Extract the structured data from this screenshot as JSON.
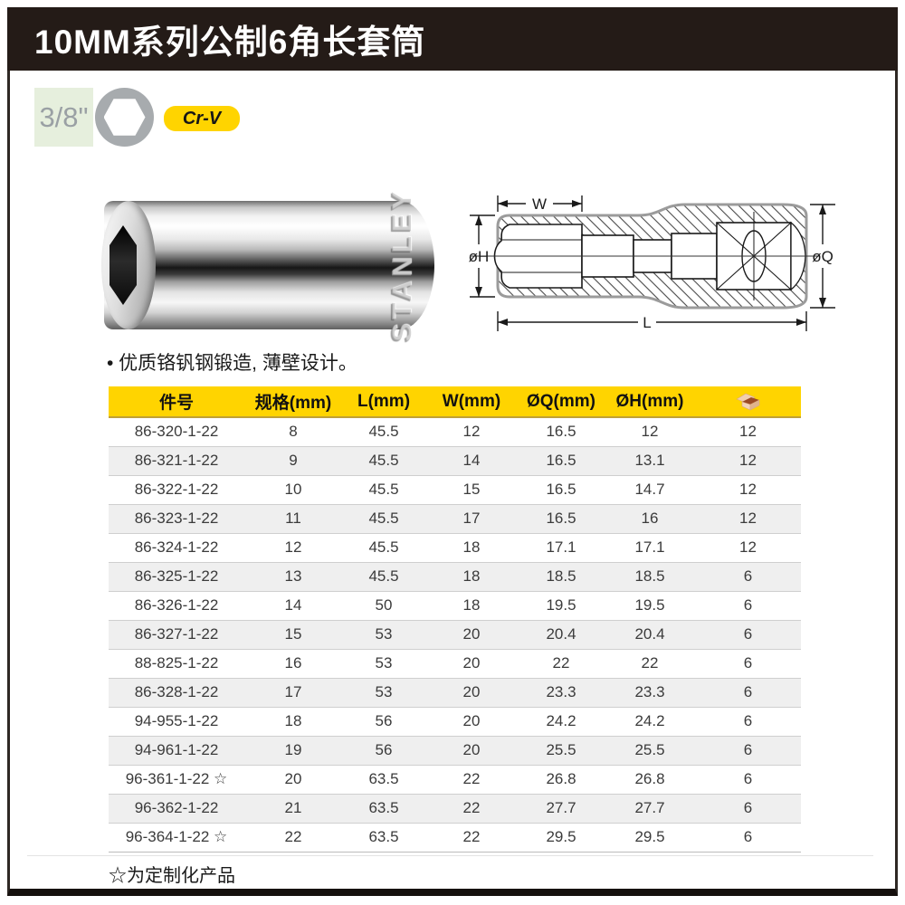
{
  "page": {
    "title": "10MM系列公制6角长套筒",
    "drive_size": "3/8\"",
    "material_badge": "Cr-V",
    "feature_bullet": "• 优质铬钒钢锻造, 薄壁设计。",
    "footnote": "☆为定制化产品",
    "brand_engraving": "STANLEY"
  },
  "diagram": {
    "labels": {
      "width": "W",
      "hex_diameter": "øH",
      "drive_diameter": "øQ",
      "length": "L"
    }
  },
  "table": {
    "headers": [
      "件号",
      "规格(mm)",
      "L(mm)",
      "W(mm)",
      "ØQ(mm)",
      "ØH(mm)"
    ],
    "pack_column_icon": "box-icon",
    "rows": [
      [
        "86-320-1-22",
        "8",
        "45.5",
        "12",
        "16.5",
        "12",
        "12"
      ],
      [
        "86-321-1-22",
        "9",
        "45.5",
        "14",
        "16.5",
        "13.1",
        "12"
      ],
      [
        "86-322-1-22",
        "10",
        "45.5",
        "15",
        "16.5",
        "14.7",
        "12"
      ],
      [
        "86-323-1-22",
        "11",
        "45.5",
        "17",
        "16.5",
        "16",
        "12"
      ],
      [
        "86-324-1-22",
        "12",
        "45.5",
        "18",
        "17.1",
        "17.1",
        "12"
      ],
      [
        "86-325-1-22",
        "13",
        "45.5",
        "18",
        "18.5",
        "18.5",
        "6"
      ],
      [
        "86-326-1-22",
        "14",
        "50",
        "18",
        "19.5",
        "19.5",
        "6"
      ],
      [
        "86-327-1-22",
        "15",
        "53",
        "20",
        "20.4",
        "20.4",
        "6"
      ],
      [
        "88-825-1-22",
        "16",
        "53",
        "20",
        "22",
        "22",
        "6"
      ],
      [
        "86-328-1-22",
        "17",
        "53",
        "20",
        "23.3",
        "23.3",
        "6"
      ],
      [
        "94-955-1-22",
        "18",
        "56",
        "20",
        "24.2",
        "24.2",
        "6"
      ],
      [
        "94-961-1-22",
        "19",
        "56",
        "20",
        "25.5",
        "25.5",
        "6"
      ],
      [
        "96-361-1-22 ☆",
        "20",
        "63.5",
        "22",
        "26.8",
        "26.8",
        "6"
      ],
      [
        "96-362-1-22",
        "21",
        "63.5",
        "22",
        "27.7",
        "27.7",
        "6"
      ],
      [
        "96-364-1-22 ☆",
        "22",
        "63.5",
        "22",
        "29.5",
        "29.5",
        "6"
      ]
    ]
  },
  "colors": {
    "header_bar": "#241b17",
    "table_header_yellow": "#ffd400",
    "badge_yellow": "#ffd400",
    "drive_box_green": "#e6efdd",
    "alt_row_gray": "#efefef",
    "hex_circle_gray": "#a7abae"
  }
}
